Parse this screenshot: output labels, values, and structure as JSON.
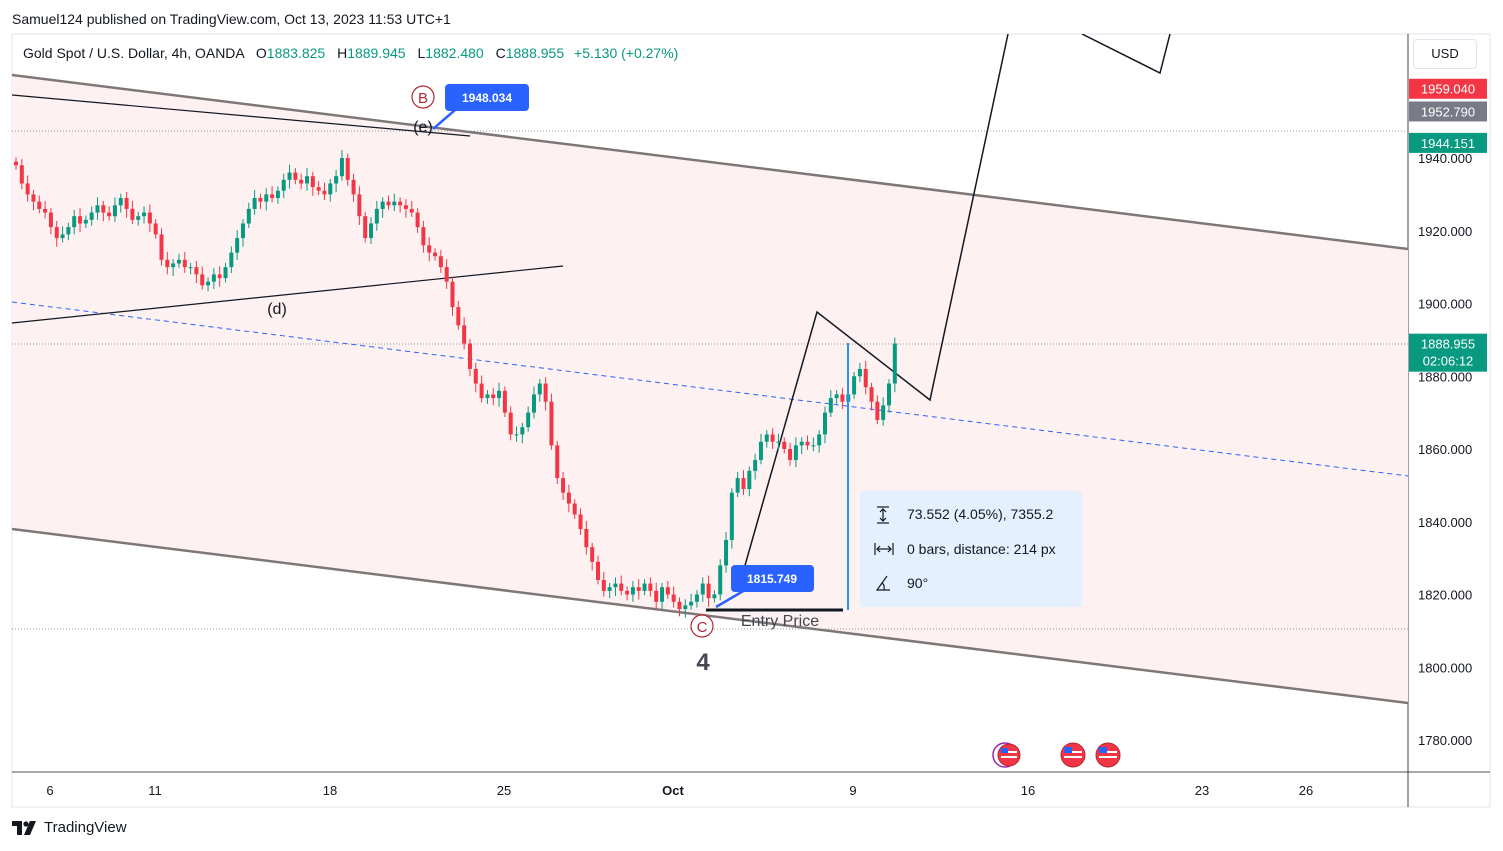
{
  "header": {
    "published_by": "Samuel124 published on TradingView.com, Oct 13, 2023 11:53 UTC+1",
    "symbol": "Gold Spot / U.S. Dollar, 4h, OANDA",
    "open_label": "O",
    "open": "1883.825",
    "high_label": "H",
    "high": "1889.945",
    "low_label": "L",
    "low": "1882.480",
    "close_label": "C",
    "close": "1888.955",
    "change": "+5.130 (+0.27%)"
  },
  "currency_button": "USD",
  "brand": "TradingView",
  "colors": {
    "up": "#089981",
    "down": "#f23645",
    "channel_fill": "#fdf1f1",
    "channel_line": "#7f7777",
    "dashed": "#2962ff",
    "callout": "#2962ff"
  },
  "chart_data": {
    "type": "candlestick",
    "timeframe": "4h",
    "ylim": [
      1770,
      1970
    ],
    "y_ticks": [
      "1780.000",
      "1800.000",
      "1820.000",
      "1840.000",
      "1860.000",
      "1880.000",
      "1900.000",
      "1920.000",
      "1940.000"
    ],
    "x_ticks": [
      "6",
      "11",
      "18",
      "25",
      "Oct",
      "9",
      "16",
      "23",
      "26"
    ],
    "price_tags": [
      {
        "label": "1959.040",
        "value": 1959.04,
        "color": "#f23645"
      },
      {
        "label": "1952.790",
        "value": 1952.79,
        "color": "#787b86"
      },
      {
        "label": "1944.151",
        "value": 1944.151,
        "color": "#089981"
      },
      {
        "label": "1888.955",
        "value": 1888.955,
        "color": "#089981",
        "countdown": "02:06:12"
      }
    ],
    "horizontal_levels": [
      1948.034,
      1888.955,
      1810.5
    ],
    "closes": [
      1938,
      1933,
      1930,
      1928,
      1926,
      1925,
      1921,
      1918,
      1919,
      1921,
      1924,
      1922,
      1923,
      1925,
      1927,
      1925,
      1924,
      1927,
      1929,
      1926,
      1923,
      1924,
      1925,
      1922,
      1919,
      1912,
      1910,
      1911,
      1912,
      1910,
      1910,
      1908,
      1905,
      1906,
      1908,
      1907,
      1910,
      1914,
      1918,
      1922,
      1926,
      1929,
      1928,
      1930,
      1929,
      1931,
      1934,
      1936,
      1934,
      1933,
      1935,
      1932,
      1931,
      1930,
      1933,
      1935,
      1940,
      1934,
      1930,
      1924,
      1918,
      1922,
      1926,
      1928,
      1927,
      1928,
      1927,
      1926,
      1925,
      1921,
      1916,
      1914,
      1913,
      1910,
      1906,
      1899,
      1894,
      1889,
      1882,
      1878,
      1874,
      1875,
      1874,
      1876,
      1870,
      1864,
      1864,
      1866,
      1870,
      1875,
      1878,
      1873,
      1861,
      1852,
      1848,
      1845,
      1842,
      1838,
      1833,
      1829,
      1824,
      1821,
      1822,
      1823,
      1821,
      1820,
      1822,
      1821,
      1823,
      1821,
      1818,
      1822,
      1820,
      1818,
      1816,
      1817,
      1818,
      1820,
      1823,
      1819,
      1820,
      1828,
      1835,
      1848,
      1852,
      1849,
      1854,
      1857,
      1862,
      1864,
      1862,
      1862,
      1860,
      1857,
      1861,
      1862,
      1861,
      1861,
      1864,
      1870,
      1874,
      1875,
      1873,
      1875,
      1880,
      1882,
      1877,
      1873,
      1868,
      1872,
      1878,
      1889
    ],
    "annotations": [
      {
        "type": "wave_label",
        "text": "B",
        "circled": true,
        "value": 1948.034
      },
      {
        "type": "wave_label",
        "text": "(e)"
      },
      {
        "type": "wave_label",
        "text": "(d)"
      },
      {
        "type": "wave_label",
        "text": "C",
        "circled": true
      },
      {
        "type": "wave_label",
        "text": "4"
      },
      {
        "type": "price_callout",
        "text": "1948.034"
      },
      {
        "type": "price_callout",
        "text": "1815.749"
      },
      {
        "type": "text",
        "text": "Entry Price"
      }
    ],
    "measure_tool": {
      "price_range": "73.552 (4.05%), 7355.2",
      "bars": "0 bars, distance: 214 px",
      "angle": "90°"
    },
    "event_markers": 3
  }
}
